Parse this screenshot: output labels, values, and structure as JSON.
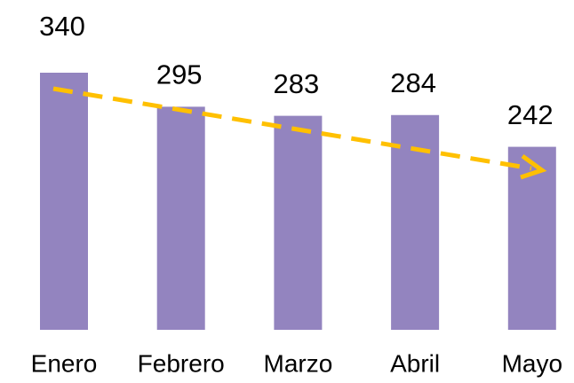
{
  "chart_data": {
    "type": "bar",
    "categories": [
      "Enero",
      "Febrero",
      "Marzo",
      "Abril",
      "Mayo"
    ],
    "values": [
      340,
      295,
      283,
      284,
      242
    ],
    "color": "#9384bf"
  }
}
